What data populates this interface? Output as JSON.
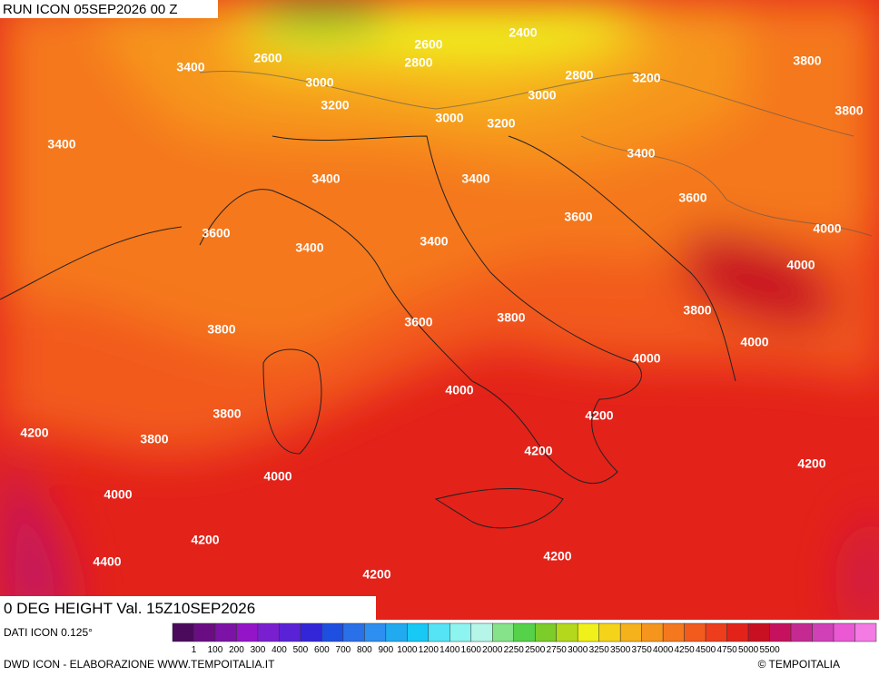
{
  "header": {
    "run": "RUN ICON 05SEP2026 00 Z"
  },
  "map": {
    "field": "0 DEG HEIGHT Val. 15Z10SEP2026",
    "contour_labels": [
      "3400",
      "2600",
      "3000",
      "3200",
      "2600",
      "2400",
      "2800",
      "2800",
      "3200",
      "3800",
      "3800",
      "3000",
      "3000",
      "3200",
      "3400",
      "3400",
      "3400",
      "3400",
      "3600",
      "3600",
      "3600",
      "3400",
      "3400",
      "4000",
      "4000",
      "3800",
      "3600",
      "3800",
      "3800",
      "4000",
      "4000",
      "4000",
      "3800",
      "4200",
      "4200",
      "3800",
      "4200",
      "4000",
      "4200",
      "4000",
      "4200",
      "4200",
      "4400",
      "4200"
    ]
  },
  "colorbar": {
    "source": "DATI ICON 0.125°",
    "colors": [
      "#4b0a5c",
      "#6a0d83",
      "#7d12a6",
      "#9414c8",
      "#7a1fd0",
      "#5a22d6",
      "#3325d8",
      "#1f4fe0",
      "#2a70e8",
      "#2f8ff0",
      "#22aaf0",
      "#18c8f5",
      "#55e3f5",
      "#8ef4f0",
      "#b6f6e8",
      "#86e38a",
      "#55d24a",
      "#7ccc2a",
      "#b4d81c",
      "#f0f01a",
      "#f5d31a",
      "#f6b21c",
      "#f6951e",
      "#f5781f",
      "#f25a1e",
      "#ee3d1c",
      "#e3221a",
      "#c81022",
      "#c6125e",
      "#c42a92",
      "#d041b8",
      "#ea58d4",
      "#f47ae4"
    ],
    "labels": [
      "1",
      "100",
      "200",
      "300",
      "400",
      "500",
      "600",
      "700",
      "800",
      "900",
      "1000",
      "1200",
      "1400",
      "1600",
      "2000",
      "2250",
      "2500",
      "2750",
      "3000",
      "3250",
      "3500",
      "3750",
      "4000",
      "4250",
      "4500",
      "4750",
      "5000",
      "5500"
    ]
  },
  "footer": {
    "credit": "DWD ICON - ELABORAZIONE WWW.TEMPOITALIA.IT",
    "copyright": "© TEMPOITALIA"
  }
}
